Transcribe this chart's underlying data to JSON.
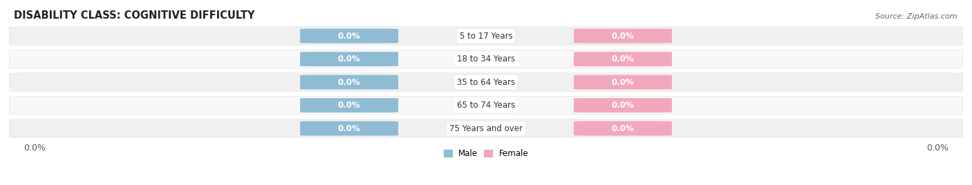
{
  "title": "DISABILITY CLASS: COGNITIVE DIFFICULTY",
  "source": "Source: ZipAtlas.com",
  "categories": [
    "5 to 17 Years",
    "18 to 34 Years",
    "35 to 64 Years",
    "65 to 74 Years",
    "75 Years and over"
  ],
  "male_values": [
    0.0,
    0.0,
    0.0,
    0.0,
    0.0
  ],
  "female_values": [
    0.0,
    0.0,
    0.0,
    0.0,
    0.0
  ],
  "male_color": "#8fbcd4",
  "female_color": "#f2a8bc",
  "male_label": "Male",
  "female_label": "Female",
  "row_bg_color": "#f0f0f0",
  "row_alt_color": "#f8f8f8",
  "bar_height": 0.6,
  "title_fontsize": 10.5,
  "label_fontsize": 8.5,
  "cat_fontsize": 8.5,
  "tick_fontsize": 9,
  "source_fontsize": 8,
  "value_label": "0.0%"
}
